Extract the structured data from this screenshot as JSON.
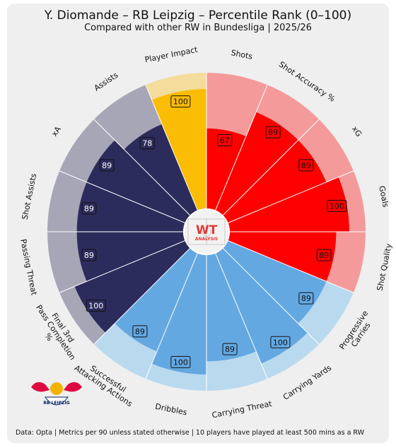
{
  "header": {
    "title": "Y. Diomande – RB Leipzig – Percentile Rank (0–100)",
    "subtitle": "Compared with other RW in Bundesliga | 2025/26"
  },
  "footer": {
    "note": "Data: Opta | Metrics per 90 unless stated otherwise | 10 players have played at least 500 mins as a RW"
  },
  "center_logo": {
    "line1": "WT",
    "line2": "ANALYSIS"
  },
  "club_logo": {
    "text": "RB LEIPZIG"
  },
  "colors": {
    "shooting": "#ff0000",
    "shooting_bg": "#f49a9a",
    "carrying": "#64a8e2",
    "carrying_bg": "#b9d9ef",
    "passing": "#2c2c5c",
    "passing_bg": "#a6a6b6",
    "impact": "#fbbc04",
    "impact_bg": "#f3dc9c"
  },
  "chart_data": {
    "type": "polar-bar",
    "title": "Y. Diomande – RB Leipzig – Percentile Rank (0–100)",
    "subtitle": "Compared with other RW in Bundesliga | 2025/26",
    "rlim": [
      0,
      100
    ],
    "categories": [
      "Shots",
      "Shot Accuracy %",
      "xG",
      "Goals",
      "Shot Quality",
      "Progressive Carries",
      "Carrying Yards",
      "Carrying Threat",
      "Dribbles",
      "Successful Attacking Actions",
      "Final 3rd Pass Completion %",
      "Passing Threat",
      "Shot Assists",
      "xA",
      "Assists",
      "Player Impact"
    ],
    "values": [
      67,
      89,
      89,
      100,
      89,
      89,
      100,
      89,
      100,
      89,
      100,
      89,
      89,
      89,
      78,
      100
    ],
    "value_labels": [
      "67",
      "89",
      "89",
      "100",
      "89",
      "89",
      "100",
      "89",
      "100",
      "89",
      "100",
      "89",
      "89",
      "89",
      "78",
      "100"
    ],
    "groups": [
      "shooting",
      "shooting",
      "shooting",
      "shooting",
      "shooting",
      "carrying",
      "carrying",
      "carrying",
      "carrying",
      "carrying",
      "passing",
      "passing",
      "passing",
      "passing",
      "passing",
      "impact"
    ]
  }
}
